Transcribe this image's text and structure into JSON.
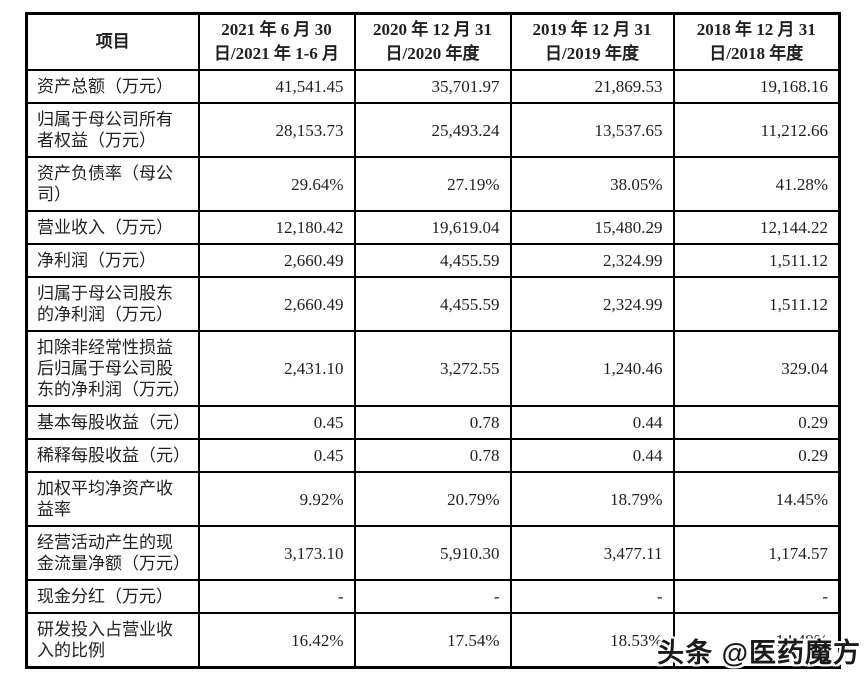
{
  "colors": {
    "page_background": "#ffffff",
    "table_border": "#000000",
    "text": "#1f1f1f",
    "watermark_text": "#1a1a1a",
    "watermark_outline": "#ffffff"
  },
  "watermark": {
    "text": "头条 @医药魔方"
  },
  "table": {
    "header": {
      "item_label": "项目",
      "periods": [
        {
          "line1": "2021 年 6 月 30",
          "line2": "日/2021 年 1-6 月"
        },
        {
          "line1": "2020 年 12 月 31",
          "line2": "日/2020 年度"
        },
        {
          "line1": "2019 年 12 月 31",
          "line2": "日/2019 年度"
        },
        {
          "line1": "2018 年 12 月 31",
          "line2": "日/2018 年度"
        }
      ]
    },
    "rows": [
      {
        "label": "资产总额（万元）",
        "values": [
          "41,541.45",
          "35,701.97",
          "21,869.53",
          "19,168.16"
        ]
      },
      {
        "label": "归属于母公司所有\n者权益（万元）",
        "values": [
          "28,153.73",
          "25,493.24",
          "13,537.65",
          "11,212.66"
        ]
      },
      {
        "label": "资产负债率（母公\n司）",
        "values": [
          "29.64%",
          "27.19%",
          "38.05%",
          "41.28%"
        ]
      },
      {
        "label": "营业收入（万元）",
        "values": [
          "12,180.42",
          "19,619.04",
          "15,480.29",
          "12,144.22"
        ]
      },
      {
        "label": "净利润（万元）",
        "values": [
          "2,660.49",
          "4,455.59",
          "2,324.99",
          "1,511.12"
        ]
      },
      {
        "label": "归属于母公司股东\n的净利润（万元）",
        "values": [
          "2,660.49",
          "4,455.59",
          "2,324.99",
          "1,511.12"
        ]
      },
      {
        "label": "扣除非经常性损益\n后归属于母公司股\n东的净利润（万元）",
        "values": [
          "2,431.10",
          "3,272.55",
          "1,240.46",
          "329.04"
        ]
      },
      {
        "label": "基本每股收益（元）",
        "values": [
          "0.45",
          "0.78",
          "0.44",
          "0.29"
        ]
      },
      {
        "label": "稀释每股收益（元）",
        "values": [
          "0.45",
          "0.78",
          "0.44",
          "0.29"
        ]
      },
      {
        "label": "加权平均净资产收\n益率",
        "values": [
          "9.92%",
          "20.79%",
          "18.79%",
          "14.45%"
        ]
      },
      {
        "label": "经营活动产生的现\n金流量净额（万元）",
        "values": [
          "3,173.10",
          "5,910.30",
          "3,477.11",
          "1,174.57"
        ]
      },
      {
        "label": "现金分红（万元）",
        "values": [
          "-",
          "-",
          "-",
          "-"
        ]
      },
      {
        "label": "研发投入占营业收\n入的比例",
        "values": [
          "16.42%",
          "17.54%",
          "18.53%",
          "14.49%"
        ]
      }
    ]
  }
}
